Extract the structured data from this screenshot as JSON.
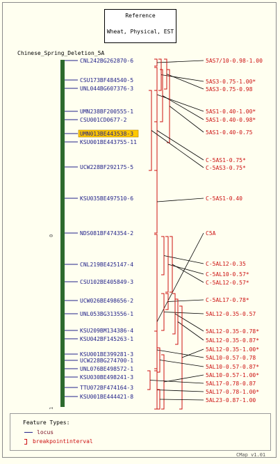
{
  "reference": {
    "line1": "Reference",
    "line2": "Wheat, Physical, EST"
  },
  "chromosome": {
    "title": "Chinese_Spring_Deletion_5A",
    "top_tick": "0",
    "bottom_tick": "1"
  },
  "colors": {
    "bar": "#2d6a2d",
    "locus": "#22228a",
    "interval": "#cc1010",
    "highlight": "#ffc800"
  },
  "loci": [
    {
      "label": "CNL242BG262870-6",
      "highlight": false
    },
    {
      "label": "CSU173BF484540-5",
      "highlight": false
    },
    {
      "label": "UNL044BG607376-3",
      "highlight": false
    },
    {
      "label": "UMN238BF200555-1",
      "highlight": false
    },
    {
      "label": "CSU001CD0677-2",
      "highlight": false
    },
    {
      "label": "UMN013BE443538-3",
      "highlight": true
    },
    {
      "label": "KSU001BE443755-11",
      "highlight": false
    },
    {
      "label": "UCW228BF292175-5",
      "highlight": false
    },
    {
      "label": "KSU035BE497510-6",
      "highlight": false
    },
    {
      "label": "NDS081BF474354-2",
      "highlight": false
    },
    {
      "label": "CNL219BE425147-4",
      "highlight": false
    },
    {
      "label": "CSU102BE405849-3",
      "highlight": false
    },
    {
      "label": "UCW026BE498656-2",
      "highlight": false
    },
    {
      "label": "UNL053BG313556-1",
      "highlight": false
    },
    {
      "label": "KSU209BM134386-4",
      "highlight": false
    },
    {
      "label": "KSU042BF145263-1",
      "highlight": false
    },
    {
      "label": "KSU001BE399281-3",
      "highlight": false
    },
    {
      "label": "UCW228BG274700-1",
      "highlight": false
    },
    {
      "label": "UNL076BE498572-1",
      "highlight": false
    },
    {
      "label": "KSU030BE498241-3",
      "highlight": false
    },
    {
      "label": "TTU072BF474164-3",
      "highlight": false
    },
    {
      "label": "KSU001BE444421-8",
      "highlight": false
    }
  ],
  "intervals": [
    "5AS7/10-0.98-1.00",
    "5AS3-0.75-1.00*",
    "5AS3-0.75-0.98",
    "5AS1-0.40-1.00*",
    "5AS1-0.40-0.98*",
    "5AS1-0.40-0.75",
    "C-5AS1-0.75*",
    "C-5AS3-0.75*",
    "C-5AS1-0.40",
    "C5A",
    "C-5AL12-0.35",
    "C-5AL10-0.57*",
    "C-5AL12-0.57*",
    "C-5AL17-0.78*",
    "5AL12-0.35-0.57",
    "5AL12-0.35-0.78*",
    "5AL12-0.35-0.87*",
    "5AL12-0.35-1.00*",
    "5AL10-0.57-0.78",
    "5AL10-0.57-0.87*",
    "5AL10-0.57-1.00*",
    "5AL17-0.78-0.87",
    "5AL17-0.78-1.00*",
    "5AL23-0.87-1.00"
  ],
  "legend": {
    "title": "Feature Types:",
    "items": [
      "locus",
      "breakpointinterval"
    ]
  },
  "version": "CMap v1.01"
}
